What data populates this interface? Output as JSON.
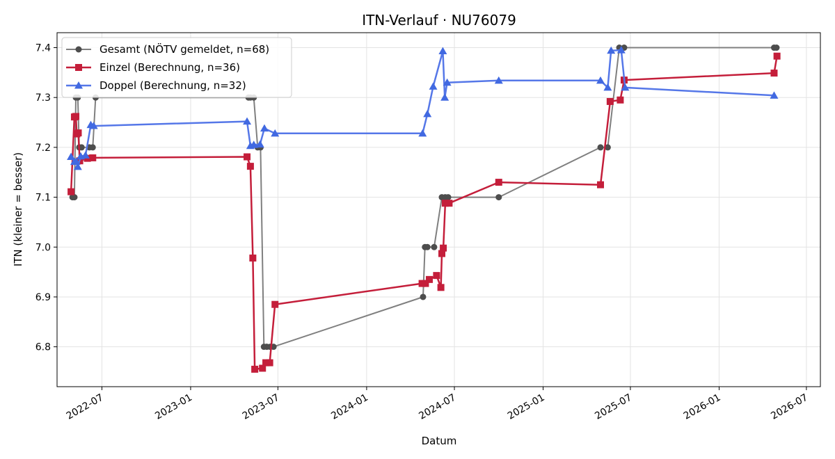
{
  "chart_data": {
    "type": "line",
    "title": "ITN-Verlauf · NU76079",
    "xlabel": "Datum",
    "ylabel": "ITN  (kleiner = besser)",
    "x_type": "date",
    "xlim": [
      "2022-03-30",
      "2026-07-30"
    ],
    "ylim": [
      6.72,
      7.43
    ],
    "x_ticks": [
      "2022-07-01",
      "2023-01-01",
      "2023-07-01",
      "2024-01-01",
      "2024-07-01",
      "2025-01-01",
      "2025-07-01",
      "2026-01-01",
      "2026-07-01"
    ],
    "x_tick_labels": [
      "2022-07",
      "2023-01",
      "2023-07",
      "2024-01",
      "2024-07",
      "2025-01",
      "2025-07",
      "2026-01",
      "2026-07"
    ],
    "y_ticks": [
      6.8,
      6.9,
      7.0,
      7.1,
      7.2,
      7.3,
      7.4
    ],
    "y_tick_labels": [
      "6.8",
      "6.9",
      "7.0",
      "7.1",
      "7.2",
      "7.3",
      "7.4"
    ],
    "grid": true,
    "legend_position": "top-left",
    "series": [
      {
        "name": "Gesamt (NÖTV gemeldet, n=68)",
        "color": "#4d4d4d",
        "line_color": "#7f7f7f",
        "marker": "circle",
        "points": [
          [
            "2022-05-01",
            7.1
          ],
          [
            "2022-05-05",
            7.1
          ],
          [
            "2022-05-08",
            7.3
          ],
          [
            "2022-05-12",
            7.3
          ],
          [
            "2022-05-15",
            7.2
          ],
          [
            "2022-05-20",
            7.2
          ],
          [
            "2022-06-05",
            7.2
          ],
          [
            "2022-06-12",
            7.2
          ],
          [
            "2022-06-18",
            7.3
          ],
          [
            "2023-05-01",
            7.3
          ],
          [
            "2023-05-05",
            7.3
          ],
          [
            "2023-05-12",
            7.3
          ],
          [
            "2023-05-20",
            7.2
          ],
          [
            "2023-05-26",
            7.2
          ],
          [
            "2023-06-02",
            6.8
          ],
          [
            "2023-06-08",
            6.8
          ],
          [
            "2023-06-15",
            6.8
          ],
          [
            "2023-06-22",
            6.8
          ],
          [
            "2024-04-27",
            6.9
          ],
          [
            "2024-05-01",
            7.0
          ],
          [
            "2024-05-06",
            7.0
          ],
          [
            "2024-05-20",
            7.0
          ],
          [
            "2024-06-05",
            7.1
          ],
          [
            "2024-06-12",
            7.1
          ],
          [
            "2024-06-18",
            7.1
          ],
          [
            "2024-10-01",
            7.1
          ],
          [
            "2025-04-30",
            7.2
          ],
          [
            "2025-05-15",
            7.2
          ],
          [
            "2025-06-08",
            7.4
          ],
          [
            "2025-06-18",
            7.4
          ],
          [
            "2026-04-25",
            7.4
          ],
          [
            "2026-04-30",
            7.4
          ]
        ]
      },
      {
        "name": "Einzel (Berechnung, n=36)",
        "color": "#c41e3a",
        "marker": "square",
        "points": [
          [
            "2022-04-28",
            7.111
          ],
          [
            "2022-05-05",
            7.261
          ],
          [
            "2022-05-08",
            7.262
          ],
          [
            "2022-05-10",
            7.227
          ],
          [
            "2022-05-13",
            7.229
          ],
          [
            "2022-05-16",
            7.173
          ],
          [
            "2022-06-01",
            7.178
          ],
          [
            "2022-06-12",
            7.179
          ],
          [
            "2023-04-28",
            7.181
          ],
          [
            "2023-05-05",
            7.162
          ],
          [
            "2023-05-10",
            6.978
          ],
          [
            "2023-05-14",
            6.755
          ],
          [
            "2023-05-30",
            6.757
          ],
          [
            "2023-06-06",
            6.768
          ],
          [
            "2023-06-14",
            6.768
          ],
          [
            "2023-06-25",
            6.885
          ],
          [
            "2024-04-25",
            6.927
          ],
          [
            "2024-05-02",
            6.927
          ],
          [
            "2024-05-10",
            6.935
          ],
          [
            "2024-05-25",
            6.943
          ],
          [
            "2024-06-03",
            6.919
          ],
          [
            "2024-06-05",
            6.987
          ],
          [
            "2024-06-08",
            6.998
          ],
          [
            "2024-06-12",
            7.088
          ],
          [
            "2024-06-20",
            7.088
          ],
          [
            "2024-10-01",
            7.13
          ],
          [
            "2025-04-30",
            7.125
          ],
          [
            "2025-05-20",
            7.292
          ],
          [
            "2025-06-10",
            7.295
          ],
          [
            "2025-06-18",
            7.335
          ],
          [
            "2026-04-25",
            7.349
          ],
          [
            "2026-05-01",
            7.383
          ]
        ]
      },
      {
        "name": "Doppel (Berechnung, n=32)",
        "color": "#4169e1",
        "line_color": "#5577e8",
        "marker": "triangle",
        "points": [
          [
            "2022-04-28",
            7.181
          ],
          [
            "2022-05-05",
            7.171
          ],
          [
            "2022-05-09",
            7.171
          ],
          [
            "2022-05-12",
            7.161
          ],
          [
            "2022-05-18",
            7.182
          ],
          [
            "2022-05-28",
            7.184
          ],
          [
            "2022-06-08",
            7.245
          ],
          [
            "2022-06-14",
            7.243
          ],
          [
            "2023-04-28",
            7.252
          ],
          [
            "2023-05-05",
            7.203
          ],
          [
            "2023-05-12",
            7.205
          ],
          [
            "2023-05-25",
            7.206
          ],
          [
            "2023-06-03",
            7.238
          ],
          [
            "2023-06-25",
            7.228
          ],
          [
            "2024-04-26",
            7.228
          ],
          [
            "2024-05-06",
            7.267
          ],
          [
            "2024-05-18",
            7.322
          ],
          [
            "2024-06-07",
            7.393
          ],
          [
            "2024-06-11",
            7.3
          ],
          [
            "2024-06-16",
            7.33
          ],
          [
            "2024-10-01",
            7.334
          ],
          [
            "2025-04-30",
            7.334
          ],
          [
            "2025-05-15",
            7.32
          ],
          [
            "2025-05-22",
            7.394
          ],
          [
            "2025-06-12",
            7.395
          ],
          [
            "2025-06-20",
            7.32
          ],
          [
            "2026-04-25",
            7.304
          ]
        ]
      }
    ]
  }
}
